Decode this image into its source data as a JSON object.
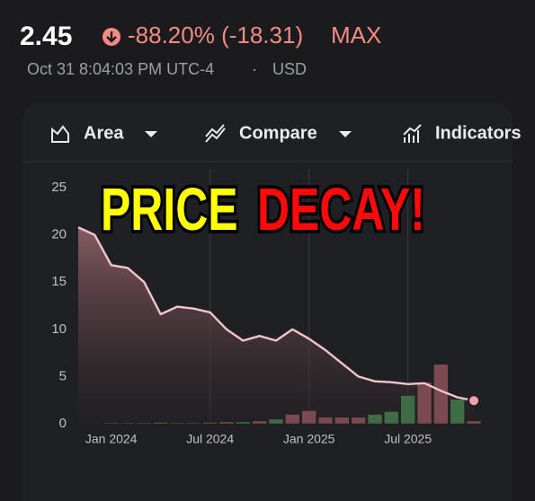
{
  "header": {
    "price": "2.45",
    "change": "-88.20% (-18.31)",
    "period": "MAX",
    "timestamp": "Oct 31 8:04:03 PM UTC-4",
    "separator": "·",
    "currency": "USD"
  },
  "toolbar": {
    "items": [
      "Area",
      "Compare",
      "Indicators"
    ]
  },
  "overlay": {
    "words": [
      "PRICE",
      "DECAY!"
    ],
    "colors": [
      "#ffff00",
      "#ff0a0a"
    ]
  },
  "chart_data": {
    "type": "area",
    "categories": [
      null,
      null,
      "Jan 2024",
      null,
      null,
      null,
      null,
      null,
      "Jul 2024",
      null,
      null,
      null,
      null,
      null,
      "Jan 2025",
      null,
      null,
      null,
      null,
      null,
      "Jul 2025",
      null,
      null,
      null,
      null
    ],
    "values": [
      20.8,
      20.0,
      16.8,
      16.5,
      15.0,
      11.6,
      12.4,
      12.2,
      11.8,
      10.0,
      8.8,
      9.3,
      8.8,
      10.0,
      9.0,
      7.8,
      6.4,
      5.0,
      4.5,
      4.4,
      4.2,
      4.3,
      3.5,
      2.8,
      2.45
    ],
    "color": "#f3c4cb",
    "volume": [
      0.05,
      0.05,
      0.1,
      0.1,
      0.1,
      0.15,
      0.1,
      0.1,
      0.15,
      0.2,
      0.2,
      0.3,
      0.5,
      1.0,
      1.4,
      0.7,
      0.7,
      0.7,
      1.0,
      1.3,
      3.0,
      4.4,
      6.3,
      2.6,
      0.3
    ],
    "volume_colors": [
      "#7a4a50",
      "#7a4a50",
      "#7a4a50",
      "#7a4a50",
      "#7a4a50",
      "#3f6b47",
      "#7a4a50",
      "#7a4a50",
      "#7a4a50",
      "#7a4a50",
      "#3f6b47",
      "#7a4a50",
      "#3f6b47",
      "#7a4a50",
      "#7a4a50",
      "#7a4a50",
      "#7a4a50",
      "#7a4a50",
      "#3f6b47",
      "#3f6b47",
      "#3f6b47",
      "#7a4a50",
      "#7a4a50",
      "#3f6b47",
      "#7a4a50"
    ],
    "ylim": [
      0,
      27
    ],
    "yticks": [
      0,
      5,
      10,
      15,
      20,
      25
    ],
    "grid": true
  }
}
